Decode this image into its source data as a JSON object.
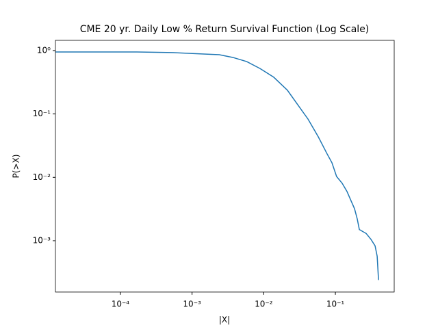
{
  "chart_data": {
    "type": "line",
    "title": "CME 20 yr. Daily Low % Return Survival Function (Log Scale)",
    "xlabel": "|X|",
    "ylabel": "P(>X)",
    "xscale": "log",
    "yscale": "log",
    "xlim": [
      1.24e-05,
      0.662
    ],
    "ylim": [
      0.000155,
      1.45
    ],
    "xticks": [
      {
        "value": 0.0001,
        "label": "10⁻⁴"
      },
      {
        "value": 0.001,
        "label": "10⁻³"
      },
      {
        "value": 0.01,
        "label": "10⁻²"
      },
      {
        "value": 0.1,
        "label": "10⁻¹"
      }
    ],
    "yticks": [
      {
        "value": 0.001,
        "label": "10⁻³"
      },
      {
        "value": 0.01,
        "label": "10⁻²"
      },
      {
        "value": 0.1,
        "label": "10⁻¹"
      },
      {
        "value": 1,
        "label": "10⁰"
      }
    ],
    "series": [
      {
        "color": "#1f77b4",
        "x": [
          1.24e-05,
          0.00017,
          0.00052,
          0.00155,
          0.0024,
          0.0037,
          0.0058,
          0.0089,
          0.0138,
          0.0214,
          0.0298,
          0.0415,
          0.0577,
          0.0767,
          0.0895,
          0.104,
          0.124,
          0.145,
          0.162,
          0.185,
          0.202,
          0.216,
          0.269,
          0.314,
          0.358,
          0.383,
          0.4
        ],
        "values": [
          0.95,
          0.95,
          0.93,
          0.88,
          0.86,
          0.78,
          0.67,
          0.52,
          0.38,
          0.237,
          0.14,
          0.083,
          0.0436,
          0.0234,
          0.017,
          0.0103,
          0.0081,
          0.006,
          0.0045,
          0.0032,
          0.0022,
          0.0015,
          0.0013,
          0.00105,
          0.00083,
          0.00057,
          0.00024
        ]
      }
    ]
  }
}
